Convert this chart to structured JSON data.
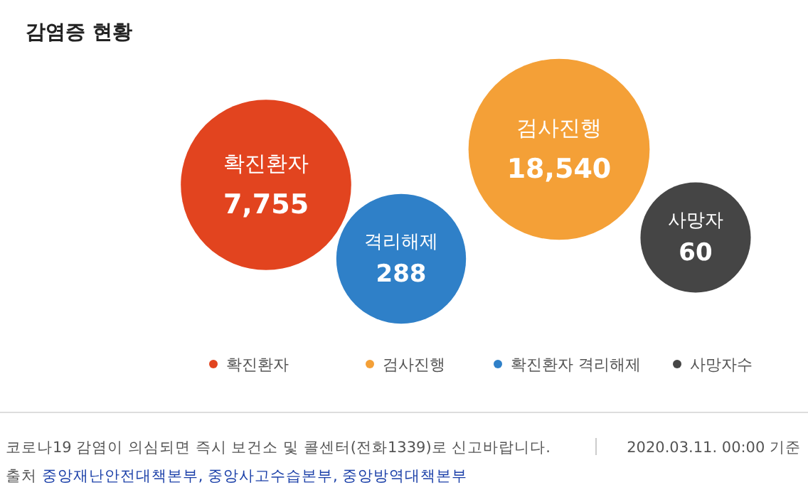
{
  "chart_data": {
    "type": "other",
    "title": "감염증 현황",
    "categories": [
      "확진환자",
      "검사진행",
      "격리해제",
      "사망자"
    ],
    "series": [
      {
        "name": "확진환자",
        "color": "#e2441f",
        "values": [
          7755,
          null,
          null,
          null
        ],
        "value_labels": [
          "7,755",
          null,
          null,
          null
        ]
      },
      {
        "name": "검사진행",
        "color": "#f4a037",
        "values": [
          null,
          18540,
          null,
          null
        ],
        "value_labels": [
          null,
          "18,540",
          null,
          null
        ]
      },
      {
        "name": "확진환자 격리해제",
        "color": "#2f80c8",
        "values": [
          null,
          null,
          288,
          null
        ],
        "value_labels": [
          null,
          null,
          "288",
          null
        ]
      },
      {
        "name": "사망자수",
        "color": "#454545",
        "values": [
          null,
          null,
          null,
          60
        ],
        "value_labels": [
          null,
          null,
          null,
          "60"
        ]
      }
    ],
    "legend": "bottom",
    "annotations": [
      "코로나19 감염이 의심되면 즉시 보건소 및 콜센터(전화1339)로 신고바랍니다.",
      "2020.03.11. 00:00 기준",
      "출처 중앙재난안전대책본부, 중앙사고수습본부, 중앙방역대책본부"
    ]
  }
}
